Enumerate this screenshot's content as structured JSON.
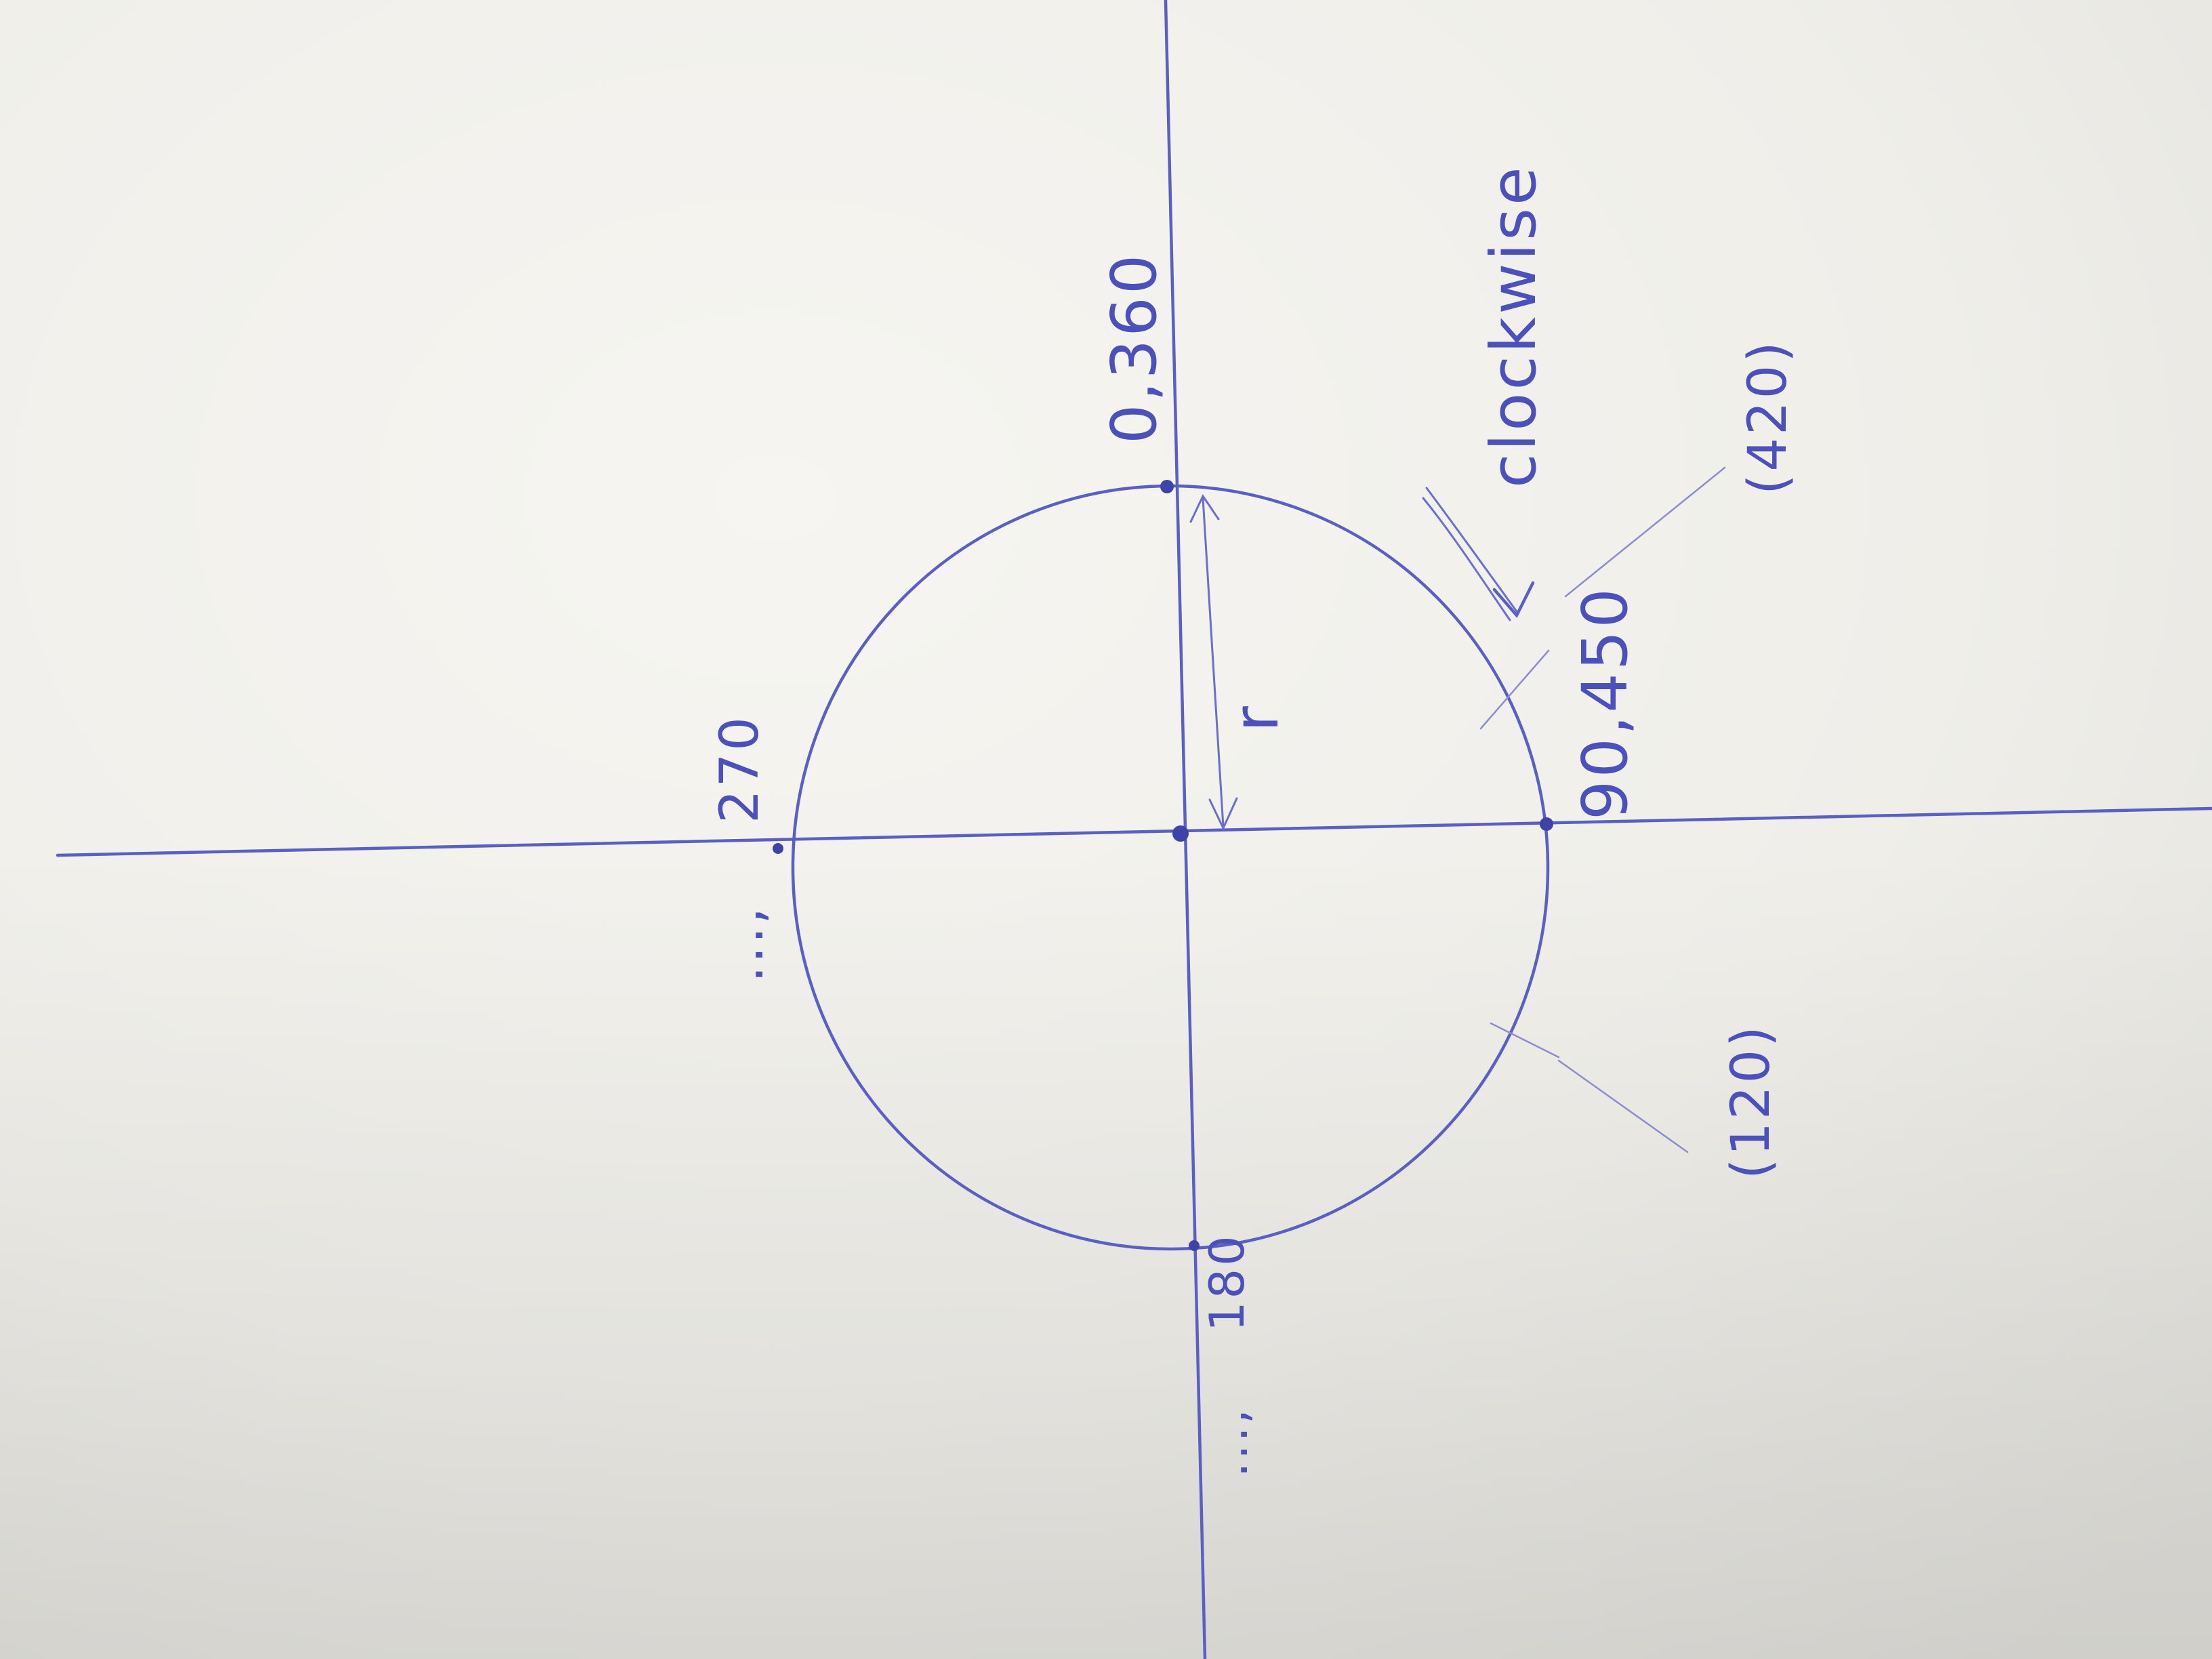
{
  "diagram": {
    "labels": {
      "top_point": "0,360",
      "left_point": "270",
      "left_dots": "...,",
      "bottom_point": "180",
      "bottom_dots": "...,",
      "right_point": "90,450",
      "radius": "r",
      "direction": "clockwise",
      "tick_a": "(420)",
      "tick_b": "(120)"
    },
    "colors": {
      "paper": "#f2f1ec",
      "ink": "#5a5fc4",
      "ink_dark": "#3e43a8"
    }
  }
}
